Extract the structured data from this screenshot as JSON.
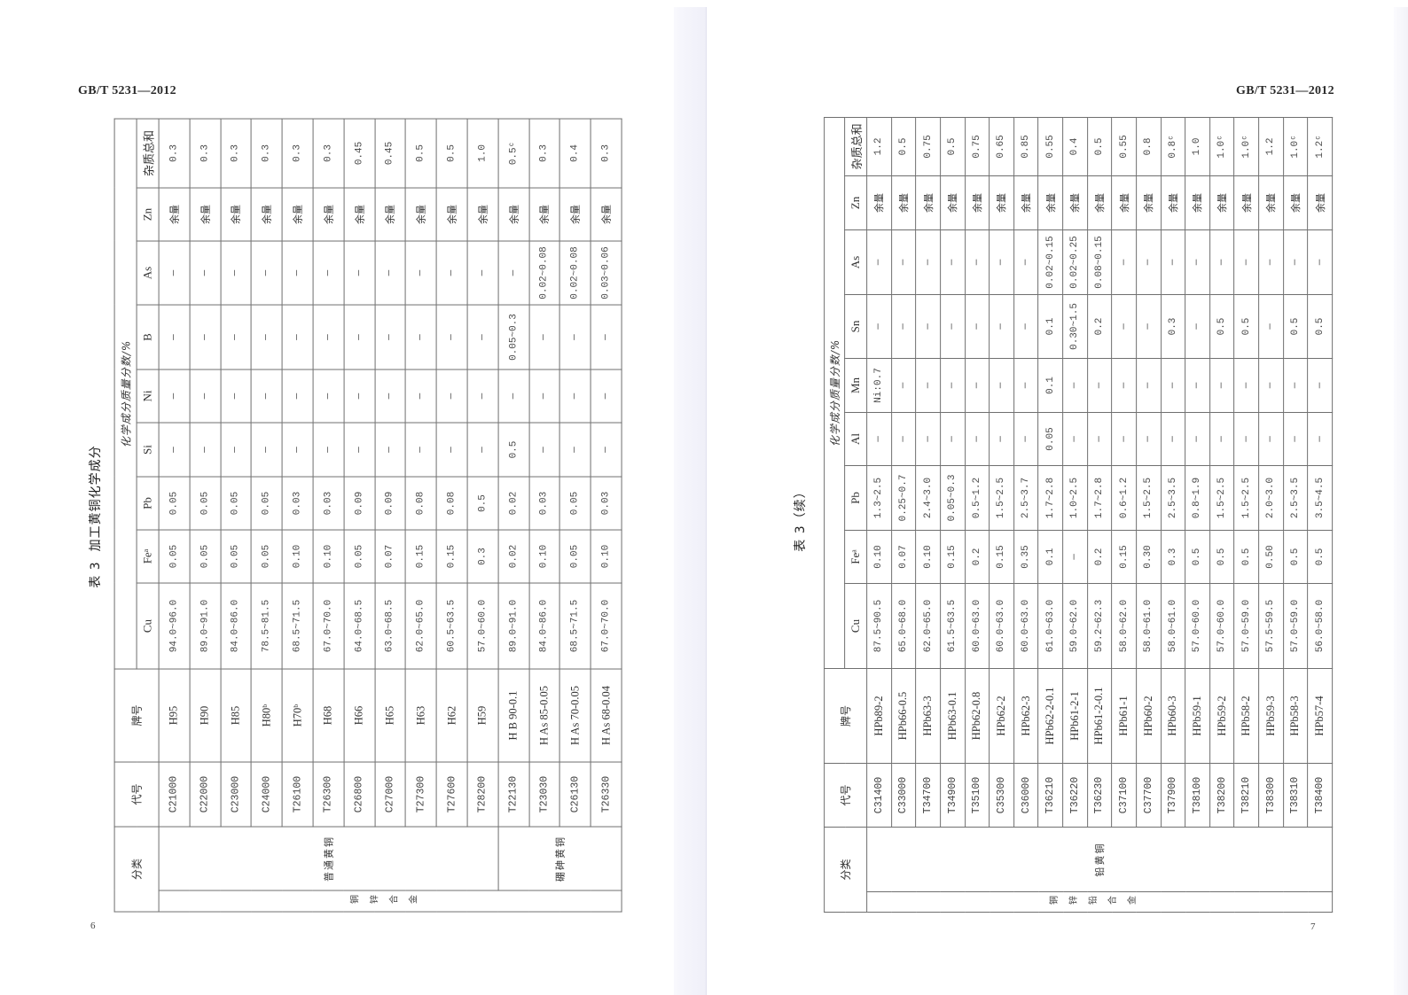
{
  "pages": [
    {
      "standard": "GB/T 5231—2012",
      "page_number": "6",
      "table_title": "表 3  加工黄铜化学成分",
      "table": {
        "headers": {
          "category": "分类",
          "code": "代号",
          "grade": "牌号",
          "composition": "化学成分质量分数/%",
          "elements": [
            "Cu",
            "Feᵃ",
            "Pb",
            "Si",
            "Ni",
            "B",
            "As",
            "Zn",
            "杂质总和"
          ]
        },
        "alloy_family": "铜锌合金",
        "groups": [
          {
            "name": "普通黄铜",
            "rows": [
              {
                "code": "C21000",
                "grade": "H95",
                "values": [
                  "94.0~96.0",
                  "0.05",
                  "0.05",
                  "—",
                  "—",
                  "—",
                  "—",
                  "余量",
                  "0.3"
                ]
              },
              {
                "code": "C22000",
                "grade": "H90",
                "values": [
                  "89.0~91.0",
                  "0.05",
                  "0.05",
                  "—",
                  "—",
                  "—",
                  "—",
                  "余量",
                  "0.3"
                ]
              },
              {
                "code": "C23000",
                "grade": "H85",
                "values": [
                  "84.0~86.0",
                  "0.05",
                  "0.05",
                  "—",
                  "—",
                  "—",
                  "—",
                  "余量",
                  "0.3"
                ]
              },
              {
                "code": "C24000",
                "grade": "H80ᵇ",
                "values": [
                  "78.5~81.5",
                  "0.05",
                  "0.05",
                  "—",
                  "—",
                  "—",
                  "—",
                  "余量",
                  "0.3"
                ]
              },
              {
                "code": "T26100",
                "grade": "H70ᵇ",
                "values": [
                  "68.5~71.5",
                  "0.10",
                  "0.03",
                  "—",
                  "—",
                  "—",
                  "—",
                  "余量",
                  "0.3"
                ]
              },
              {
                "code": "T26300",
                "grade": "H68",
                "values": [
                  "67.0~70.0",
                  "0.10",
                  "0.03",
                  "—",
                  "—",
                  "—",
                  "—",
                  "余量",
                  "0.3"
                ]
              },
              {
                "code": "C26800",
                "grade": "H66",
                "values": [
                  "64.0~68.5",
                  "0.05",
                  "0.09",
                  "—",
                  "—",
                  "—",
                  "—",
                  "余量",
                  "0.45"
                ]
              },
              {
                "code": "C27000",
                "grade": "H65",
                "values": [
                  "63.0~68.5",
                  "0.07",
                  "0.09",
                  "—",
                  "—",
                  "—",
                  "—",
                  "余量",
                  "0.45"
                ]
              },
              {
                "code": "T27300",
                "grade": "H63",
                "values": [
                  "62.0~65.0",
                  "0.15",
                  "0.08",
                  "—",
                  "—",
                  "—",
                  "—",
                  "余量",
                  "0.5"
                ]
              },
              {
                "code": "T27600",
                "grade": "H62",
                "values": [
                  "60.5~63.5",
                  "0.15",
                  "0.08",
                  "—",
                  "—",
                  "—",
                  "—",
                  "余量",
                  "0.5"
                ]
              },
              {
                "code": "T28200",
                "grade": "H59",
                "values": [
                  "57.0~60.0",
                  "0.3",
                  "0.5",
                  "—",
                  "—",
                  "—",
                  "—",
                  "余量",
                  "1.0"
                ]
              }
            ]
          },
          {
            "name": "硼砷黄铜",
            "rows": [
              {
                "code": "T22130",
                "grade": "H B 90-0.1",
                "values": [
                  "89.0~91.0",
                  "0.02",
                  "0.02",
                  "0.5",
                  "—",
                  "0.05~0.3",
                  "—",
                  "余量",
                  "0.5ᶜ"
                ]
              },
              {
                "code": "T23030",
                "grade": "H As 85-0.05",
                "values": [
                  "84.0~86.0",
                  "0.10",
                  "0.03",
                  "—",
                  "—",
                  "—",
                  "0.02~0.08",
                  "余量",
                  "0.3"
                ]
              },
              {
                "code": "C26130",
                "grade": "H As 70-0.05",
                "values": [
                  "68.5~71.5",
                  "0.05",
                  "0.05",
                  "—",
                  "—",
                  "—",
                  "0.02~0.08",
                  "余量",
                  "0.4"
                ]
              },
              {
                "code": "T26330",
                "grade": "H As 68-0.04",
                "values": [
                  "67.0~70.0",
                  "0.10",
                  "0.03",
                  "—",
                  "—",
                  "—",
                  "0.03~0.06",
                  "余量",
                  "0.3"
                ]
              }
            ]
          }
        ]
      }
    },
    {
      "standard": "GB/T 5231—2012",
      "page_number": "7",
      "table_title": "表 3（续）",
      "table": {
        "headers": {
          "category": "分类",
          "code": "代号",
          "grade": "牌号",
          "composition": "化学成分质量分数/%",
          "elements": [
            "Cu",
            "Feᵃ",
            "Pb",
            "Al",
            "Mn",
            "Sn",
            "As",
            "Zn",
            "杂质总和"
          ]
        },
        "alloy_family": "铜锌铅合金",
        "groups": [
          {
            "name": "铅黄铜",
            "rows": [
              {
                "code": "C31400",
                "grade": "HPb89-2",
                "values": [
                  "87.5~90.5",
                  "0.10",
                  "1.3~2.5",
                  "—",
                  "Ni:0.7",
                  "—",
                  "—",
                  "余量",
                  "1.2"
                ]
              },
              {
                "code": "C33000",
                "grade": "HPb66-0.5",
                "values": [
                  "65.0~68.0",
                  "0.07",
                  "0.25~0.7",
                  "—",
                  "—",
                  "—",
                  "—",
                  "余量",
                  "0.5"
                ]
              },
              {
                "code": "T34700",
                "grade": "HPb63-3",
                "values": [
                  "62.0~65.0",
                  "0.10",
                  "2.4~3.0",
                  "—",
                  "—",
                  "—",
                  "—",
                  "余量",
                  "0.75"
                ]
              },
              {
                "code": "T34900",
                "grade": "HPb63-0.1",
                "values": [
                  "61.5~63.5",
                  "0.15",
                  "0.05~0.3",
                  "—",
                  "—",
                  "—",
                  "—",
                  "余量",
                  "0.5"
                ]
              },
              {
                "code": "T35100",
                "grade": "HPb62-0.8",
                "values": [
                  "60.0~63.0",
                  "0.2",
                  "0.5~1.2",
                  "—",
                  "—",
                  "—",
                  "—",
                  "余量",
                  "0.75"
                ]
              },
              {
                "code": "C35300",
                "grade": "HPb62-2",
                "values": [
                  "60.0~63.0",
                  "0.15",
                  "1.5~2.5",
                  "—",
                  "—",
                  "—",
                  "—",
                  "余量",
                  "0.65"
                ]
              },
              {
                "code": "C36000",
                "grade": "HPb62-3",
                "values": [
                  "60.0~63.0",
                  "0.35",
                  "2.5~3.7",
                  "—",
                  "—",
                  "—",
                  "—",
                  "余量",
                  "0.85"
                ]
              },
              {
                "code": "T36210",
                "grade": "HPb62-2-0.1",
                "values": [
                  "61.0~63.0",
                  "0.1",
                  "1.7~2.8",
                  "0.05",
                  "0.1",
                  "0.1",
                  "0.02~0.15",
                  "余量",
                  "0.55"
                ]
              },
              {
                "code": "T36220",
                "grade": "HPb61-2-1",
                "values": [
                  "59.0~62.0",
                  "—",
                  "1.0~2.5",
                  "—",
                  "—",
                  "0.30~1.5",
                  "0.02~0.25",
                  "余量",
                  "0.4"
                ]
              },
              {
                "code": "T36230",
                "grade": "HPb61-2-0.1",
                "values": [
                  "59.2~62.3",
                  "0.2",
                  "1.7~2.8",
                  "—",
                  "—",
                  "0.2",
                  "0.08~0.15",
                  "余量",
                  "0.5"
                ]
              },
              {
                "code": "C37100",
                "grade": "HPb61-1",
                "values": [
                  "58.0~62.0",
                  "0.15",
                  "0.6~1.2",
                  "—",
                  "—",
                  "—",
                  "—",
                  "余量",
                  "0.55"
                ]
              },
              {
                "code": "C37700",
                "grade": "HPb60-2",
                "values": [
                  "58.0~61.0",
                  "0.30",
                  "1.5~2.5",
                  "—",
                  "—",
                  "—",
                  "—",
                  "余量",
                  "0.8"
                ]
              },
              {
                "code": "T37900",
                "grade": "HPb60-3",
                "values": [
                  "58.0~61.0",
                  "0.3",
                  "2.5~3.5",
                  "—",
                  "—",
                  "0.3",
                  "—",
                  "余量",
                  "0.8ᶜ"
                ]
              },
              {
                "code": "T38100",
                "grade": "HPb59-1",
                "values": [
                  "57.0~60.0",
                  "0.5",
                  "0.8~1.9",
                  "—",
                  "—",
                  "—",
                  "—",
                  "余量",
                  "1.0"
                ]
              },
              {
                "code": "T38200",
                "grade": "HPb59-2",
                "values": [
                  "57.0~60.0",
                  "0.5",
                  "1.5~2.5",
                  "—",
                  "—",
                  "0.5",
                  "—",
                  "余量",
                  "1.0ᶜ"
                ]
              },
              {
                "code": "T38210",
                "grade": "HPb58-2",
                "values": [
                  "57.0~59.0",
                  "0.5",
                  "1.5~2.5",
                  "—",
                  "—",
                  "0.5",
                  "—",
                  "余量",
                  "1.0ᶜ"
                ]
              },
              {
                "code": "T38300",
                "grade": "HPb59-3",
                "values": [
                  "57.5~59.5",
                  "0.50",
                  "2.0~3.0",
                  "—",
                  "—",
                  "—",
                  "—",
                  "余量",
                  "1.2"
                ]
              },
              {
                "code": "T38310",
                "grade": "HPb58-3",
                "values": [
                  "57.0~59.0",
                  "0.5",
                  "2.5~3.5",
                  "—",
                  "—",
                  "0.5",
                  "—",
                  "余量",
                  "1.0ᶜ"
                ]
              },
              {
                "code": "T38400",
                "grade": "HPb57-4",
                "values": [
                  "56.0~58.0",
                  "0.5",
                  "3.5~4.5",
                  "—",
                  "—",
                  "0.5",
                  "—",
                  "余量",
                  "1.2ᶜ"
                ]
              }
            ]
          }
        ]
      }
    }
  ]
}
